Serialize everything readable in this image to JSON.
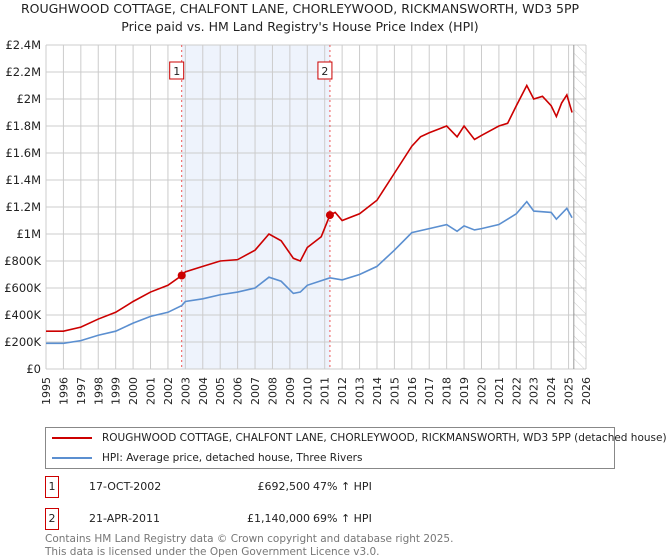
{
  "header": {
    "title": "ROUGHWOOD COTTAGE, CHALFONT LANE, CHORLEYWOOD, RICKMANSWORTH, WD3 5PP",
    "subtitle": "Price paid vs. HM Land Registry's House Price Index (HPI)"
  },
  "chart_data": {
    "type": "line",
    "title": "ROUGHWOOD COTTAGE, CHALFONT LANE, CHORLEYWOOD, RICKMANSWORTH, WD3 5PP",
    "subtitle": "Price paid vs. HM Land Registry's House Price Index (HPI)",
    "xlim": [
      1995,
      2026
    ],
    "ylim": [
      0,
      2400000
    ],
    "x_ticks": [
      "1995",
      "1996",
      "1997",
      "1998",
      "1999",
      "2000",
      "2001",
      "2002",
      "2003",
      "2004",
      "2005",
      "2006",
      "2007",
      "2008",
      "2009",
      "2010",
      "2011",
      "2012",
      "2013",
      "2014",
      "2015",
      "2016",
      "2017",
      "2018",
      "2019",
      "2020",
      "2021",
      "2022",
      "2023",
      "2024",
      "2025",
      "2026"
    ],
    "y_ticks": [
      {
        "v": 0,
        "l": "£0"
      },
      {
        "v": 200000,
        "l": "£200K"
      },
      {
        "v": 400000,
        "l": "£400K"
      },
      {
        "v": 600000,
        "l": "£600K"
      },
      {
        "v": 800000,
        "l": "£800K"
      },
      {
        "v": 1000000,
        "l": "£1M"
      },
      {
        "v": 1200000,
        "l": "£1.2M"
      },
      {
        "v": 1400000,
        "l": "£1.4M"
      },
      {
        "v": 1600000,
        "l": "£1.6M"
      },
      {
        "v": 1800000,
        "l": "£1.8M"
      },
      {
        "v": 2000000,
        "l": "£2M"
      },
      {
        "v": 2200000,
        "l": "£2.2M"
      },
      {
        "v": 2400000,
        "l": "£2.4M"
      }
    ],
    "series": [
      {
        "name": "ROUGHWOOD COTTAGE, CHALFONT LANE, CHORLEYWOOD, RICKMANSWORTH, WD3 5PP (detached house)",
        "color": "#cc0000",
        "x": [
          1995,
          1996,
          1997,
          1998,
          1999,
          2000,
          2001,
          2002,
          2002.79,
          2003,
          2004,
          2005,
          2006,
          2007,
          2007.8,
          2008.5,
          2009.2,
          2009.6,
          2010,
          2010.8,
          2011.3,
          2011.6,
          2012,
          2013,
          2014,
          2015,
          2016,
          2016.5,
          2017,
          2018,
          2018.6,
          2019,
          2019.6,
          2020,
          2021,
          2021.5,
          2022,
          2022.6,
          2023,
          2023.5,
          2024,
          2024.3,
          2024.6,
          2024.9,
          2025.2
        ],
        "y": [
          280000,
          280000,
          310000,
          370000,
          420000,
          500000,
          570000,
          620000,
          692500,
          720000,
          760000,
          800000,
          810000,
          880000,
          1000000,
          950000,
          820000,
          800000,
          900000,
          980000,
          1140000,
          1160000,
          1100000,
          1150000,
          1250000,
          1450000,
          1650000,
          1720000,
          1750000,
          1800000,
          1720000,
          1800000,
          1700000,
          1730000,
          1800000,
          1820000,
          1950000,
          2100000,
          2000000,
          2020000,
          1950000,
          1870000,
          1970000,
          2030000,
          1900000
        ]
      },
      {
        "name": "HPI: Average price, detached house, Three Rivers",
        "color": "#5b8fd0",
        "x": [
          1995,
          1996,
          1997,
          1998,
          1999,
          2000,
          2001,
          2002,
          2002.79,
          2003,
          2004,
          2005,
          2006,
          2007,
          2007.8,
          2008.5,
          2009.2,
          2009.6,
          2010,
          2011.3,
          2012,
          2013,
          2014,
          2015,
          2016,
          2017,
          2018,
          2018.6,
          2019,
          2019.6,
          2020,
          2021,
          2022,
          2022.6,
          2023,
          2024,
          2024.3,
          2024.9,
          2025.2
        ],
        "y": [
          190000,
          190000,
          210000,
          250000,
          280000,
          340000,
          390000,
          420000,
          470000,
          500000,
          520000,
          550000,
          570000,
          600000,
          680000,
          650000,
          560000,
          570000,
          620000,
          675000,
          660000,
          700000,
          760000,
          880000,
          1010000,
          1040000,
          1070000,
          1020000,
          1060000,
          1030000,
          1040000,
          1070000,
          1150000,
          1240000,
          1170000,
          1160000,
          1110000,
          1190000,
          1120000
        ]
      }
    ],
    "markers": [
      {
        "label": "1",
        "x": 2002.79,
        "y": 692500
      },
      {
        "label": "2",
        "x": 2011.3,
        "y": 1140000
      }
    ],
    "shaded_range": [
      2002.79,
      2011.3
    ],
    "forecast_from": 2025.3
  },
  "legend": {
    "red": "ROUGHWOOD COTTAGE, CHALFONT LANE, CHORLEYWOOD, RICKMANSWORTH, WD3 5PP (detached house)",
    "blue": "HPI: Average price, detached house, Three Rivers"
  },
  "transactions": [
    {
      "num": "1",
      "date": "17-OCT-2002",
      "price": "£692,500",
      "hpi": "47% ↑ HPI"
    },
    {
      "num": "2",
      "date": "21-APR-2011",
      "price": "£1,140,000",
      "hpi": "69% ↑ HPI"
    }
  ],
  "footer": {
    "line1": "Contains HM Land Registry data © Crown copyright and database right 2025.",
    "line2": "This data is licensed under the Open Government Licence v3.0."
  }
}
